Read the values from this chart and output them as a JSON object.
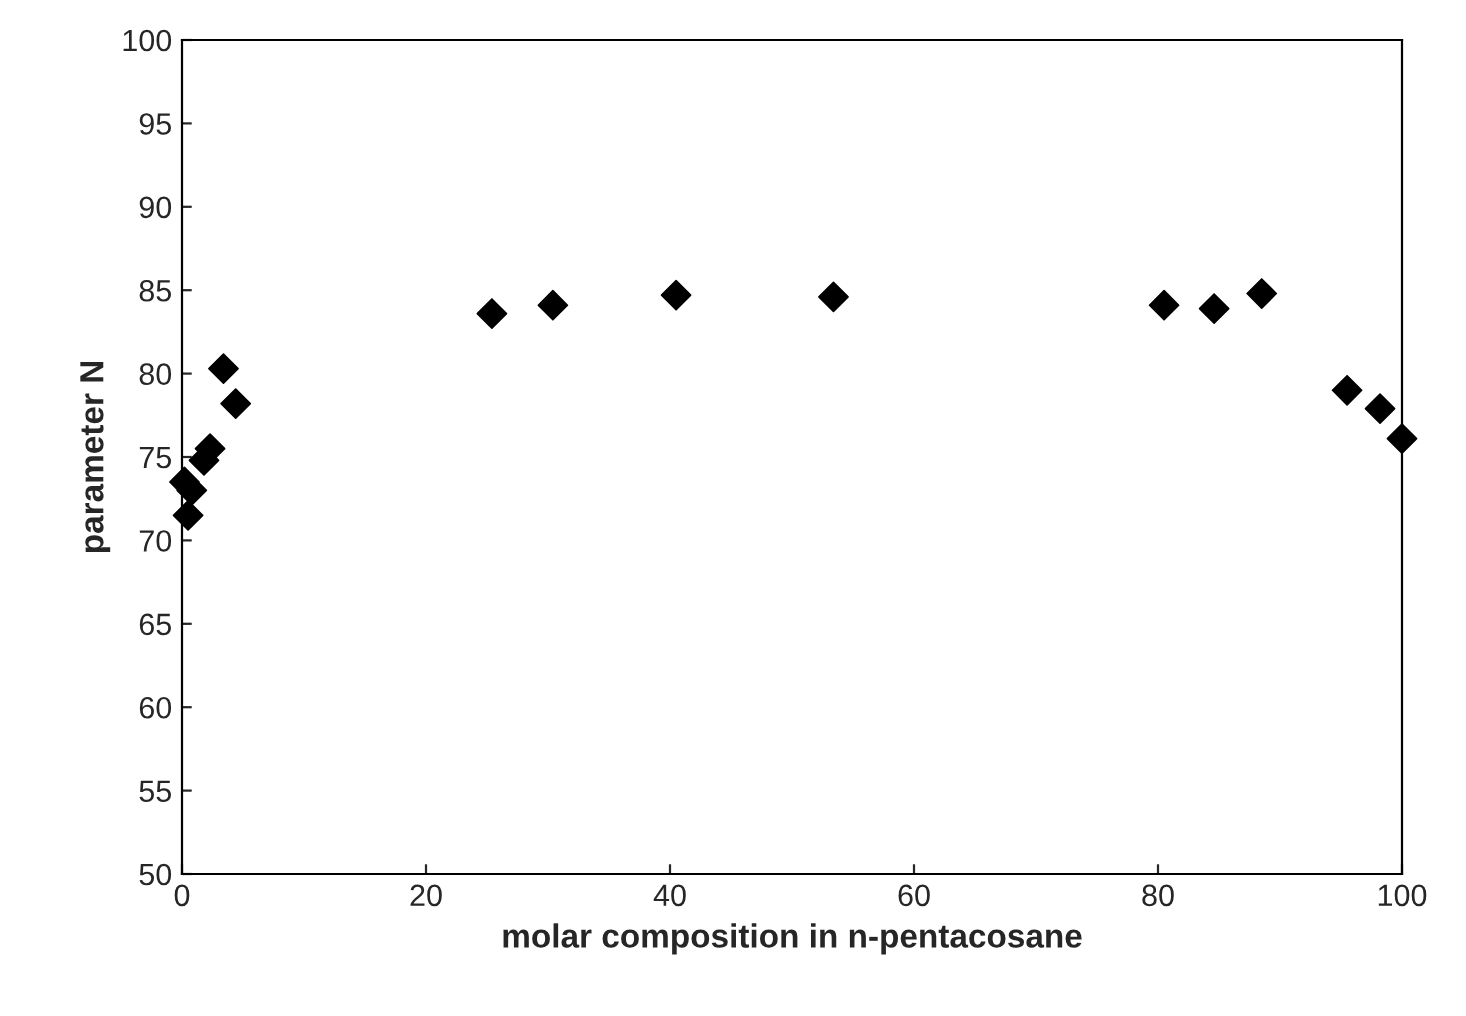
{
  "chart_data": {
    "type": "scatter",
    "xlabel": "molar composition in n-pentacosane",
    "ylabel": "parameter N",
    "x": [
      0.2,
      0.8,
      0.5,
      1.8,
      2.3,
      3.4,
      4.4,
      25.4,
      30.4,
      40.5,
      53.4,
      80.5,
      84.6,
      88.5,
      95.5,
      98.2,
      100
    ],
    "series": [
      {
        "color": "#000000",
        "values": [
          73.5,
          73.0,
          71.5,
          74.8,
          75.5,
          80.3,
          78.2,
          83.6,
          84.1,
          84.7,
          84.6,
          84.1,
          83.9,
          84.8,
          79.0,
          77.9,
          76.1
        ]
      }
    ],
    "marker": "diamond",
    "xlim": [
      0,
      100
    ],
    "xticks": [
      0,
      20,
      40,
      60,
      80,
      100
    ],
    "ylim": [
      50,
      100
    ],
    "yticks": [
      50,
      55,
      60,
      65,
      70,
      75,
      80,
      85,
      90,
      95,
      100
    ],
    "grid": false,
    "legend": false
  }
}
